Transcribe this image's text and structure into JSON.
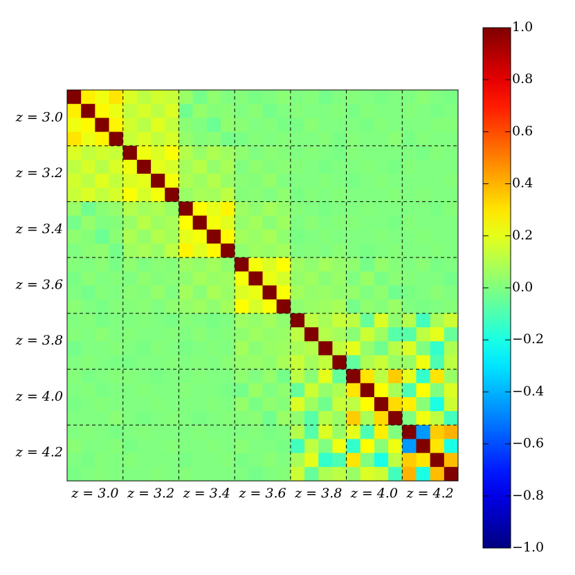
{
  "chart_data": {
    "type": "heatmap",
    "categories": [
      "z = 3.0",
      "z = 3.2",
      "z = 3.4",
      "z = 3.6",
      "z = 3.8",
      "z = 4.0",
      "z = 4.2"
    ],
    "colormap": "jet",
    "zlim": [
      -1.0,
      1.0
    ],
    "zticks": [
      {
        "value": 1.0,
        "label": "1.0"
      },
      {
        "value": 0.8,
        "label": "0.8"
      },
      {
        "value": 0.6,
        "label": "0.6"
      },
      {
        "value": 0.4,
        "label": "0.4"
      },
      {
        "value": 0.2,
        "label": "0.2"
      },
      {
        "value": 0.0,
        "label": "0.0"
      },
      {
        "value": -0.2,
        "label": "−0.2"
      },
      {
        "value": -0.4,
        "label": "−0.4"
      },
      {
        "value": -0.6,
        "label": "−0.6"
      },
      {
        "value": -0.8,
        "label": "−0.8"
      },
      {
        "value": -1.0,
        "label": "−1.0"
      }
    ],
    "z": [
      [
        1.0,
        0.28,
        0.22,
        0.3,
        0.18,
        0.12,
        0.16,
        0.14,
        0.05,
        -0.02,
        0.03,
        0.0,
        0.01,
        -0.01,
        0.0,
        0.02,
        0.0,
        0.01,
        -0.02,
        0.0,
        0.01,
        0.0,
        -0.01,
        0.0,
        0.0,
        0.02,
        0.0,
        -0.01
      ],
      [
        0.28,
        1.0,
        0.26,
        0.21,
        0.13,
        0.17,
        0.12,
        0.18,
        -0.03,
        0.04,
        0.01,
        0.02,
        0.0,
        0.02,
        -0.02,
        0.0,
        0.01,
        0.0,
        0.0,
        0.01,
        -0.01,
        0.01,
        0.0,
        0.0,
        0.01,
        0.0,
        -0.01,
        0.0
      ],
      [
        0.22,
        0.26,
        1.0,
        0.27,
        0.16,
        0.11,
        0.19,
        0.13,
        0.02,
        0.0,
        -0.04,
        0.03,
        0.02,
        0.0,
        0.01,
        -0.01,
        -0.01,
        0.02,
        0.0,
        0.0,
        0.0,
        -0.01,
        0.01,
        0.0,
        0.0,
        0.0,
        0.01,
        0.01
      ],
      [
        0.3,
        0.21,
        0.27,
        1.0,
        0.14,
        0.18,
        0.13,
        0.17,
        0.04,
        0.01,
        0.02,
        -0.02,
        -0.01,
        0.01,
        0.0,
        0.01,
        0.0,
        0.0,
        0.01,
        -0.01,
        0.01,
        0.0,
        0.0,
        0.02,
        -0.01,
        0.01,
        0.0,
        0.0
      ],
      [
        0.18,
        0.13,
        0.16,
        0.14,
        1.0,
        0.22,
        0.18,
        0.24,
        0.1,
        0.05,
        0.09,
        0.06,
        0.03,
        0.0,
        0.02,
        0.01,
        0.0,
        0.01,
        0.0,
        -0.01,
        0.01,
        0.0,
        0.0,
        0.0,
        0.0,
        -0.01,
        0.01,
        0.0
      ],
      [
        0.12,
        0.17,
        0.11,
        0.18,
        0.22,
        1.0,
        0.2,
        0.17,
        0.07,
        0.11,
        0.04,
        0.08,
        0.0,
        0.03,
        0.01,
        0.02,
        0.01,
        0.0,
        -0.01,
        0.0,
        0.0,
        0.01,
        0.0,
        -0.01,
        0.01,
        0.0,
        0.0,
        0.0
      ],
      [
        0.16,
        0.12,
        0.19,
        0.13,
        0.18,
        0.2,
        1.0,
        0.23,
        0.09,
        0.06,
        0.1,
        0.05,
        0.02,
        0.01,
        0.04,
        0.0,
        0.0,
        0.0,
        0.01,
        0.0,
        -0.01,
        0.0,
        0.01,
        0.0,
        0.0,
        0.0,
        0.0,
        0.01
      ],
      [
        0.14,
        0.18,
        0.13,
        0.17,
        0.24,
        0.17,
        0.23,
        1.0,
        0.05,
        0.08,
        0.07,
        0.12,
        0.01,
        0.02,
        0.0,
        0.03,
        -0.01,
        0.01,
        0.0,
        0.01,
        0.0,
        0.0,
        0.0,
        0.01,
        0.0,
        0.01,
        0.0,
        0.0
      ],
      [
        0.05,
        -0.03,
        0.02,
        0.04,
        0.1,
        0.07,
        0.09,
        0.05,
        1.0,
        0.25,
        0.2,
        0.27,
        0.06,
        0.03,
        0.07,
        0.04,
        0.01,
        0.0,
        -0.01,
        0.0,
        0.0,
        0.01,
        0.0,
        0.0,
        0.0,
        0.0,
        -0.01,
        0.01
      ],
      [
        -0.02,
        0.04,
        0.0,
        0.01,
        0.05,
        0.11,
        0.06,
        0.08,
        0.25,
        1.0,
        0.23,
        0.19,
        0.04,
        0.07,
        0.02,
        0.06,
        0.0,
        0.02,
        0.0,
        0.01,
        0.01,
        0.0,
        0.0,
        -0.01,
        0.01,
        0.0,
        0.0,
        0.0
      ],
      [
        0.03,
        0.01,
        -0.04,
        0.02,
        0.09,
        0.04,
        0.1,
        0.07,
        0.2,
        0.23,
        1.0,
        0.26,
        0.07,
        0.05,
        0.08,
        0.03,
        -0.01,
        0.0,
        0.01,
        0.0,
        0.0,
        0.0,
        0.01,
        0.0,
        0.0,
        0.01,
        0.0,
        0.0
      ],
      [
        0.0,
        0.02,
        0.03,
        -0.02,
        0.06,
        0.08,
        0.05,
        0.12,
        0.27,
        0.19,
        0.26,
        1.0,
        0.03,
        0.06,
        0.05,
        0.07,
        0.0,
        0.01,
        0.0,
        0.02,
        0.0,
        -0.01,
        0.0,
        0.01,
        0.0,
        0.0,
        0.01,
        0.0
      ],
      [
        0.01,
        0.0,
        0.02,
        -0.01,
        0.03,
        0.0,
        0.02,
        0.01,
        0.06,
        0.04,
        0.07,
        0.03,
        1.0,
        0.23,
        0.18,
        0.25,
        0.06,
        0.03,
        0.07,
        0.04,
        0.03,
        -0.02,
        0.04,
        0.01,
        0.0,
        0.02,
        -0.01,
        0.0
      ],
      [
        -0.01,
        0.02,
        0.0,
        0.01,
        0.0,
        0.03,
        0.01,
        0.02,
        0.03,
        0.07,
        0.05,
        0.06,
        0.23,
        1.0,
        0.21,
        0.17,
        0.04,
        0.06,
        0.02,
        0.05,
        0.0,
        0.05,
        -0.01,
        0.02,
        0.01,
        0.0,
        0.0,
        -0.02
      ],
      [
        0.0,
        -0.02,
        0.01,
        0.0,
        0.02,
        0.01,
        0.04,
        0.0,
        0.07,
        0.02,
        0.08,
        0.05,
        0.18,
        0.21,
        1.0,
        0.24,
        0.07,
        0.04,
        0.05,
        0.03,
        0.04,
        0.0,
        0.03,
        -0.03,
        -0.01,
        0.0,
        0.02,
        0.0
      ],
      [
        0.02,
        0.0,
        -0.01,
        0.01,
        0.01,
        0.02,
        0.0,
        0.03,
        0.04,
        0.06,
        0.03,
        0.07,
        0.25,
        0.17,
        0.24,
        1.0,
        0.03,
        0.05,
        0.06,
        0.08,
        -0.02,
        0.03,
        0.01,
        0.05,
        0.0,
        -0.01,
        0.0,
        0.01
      ],
      [
        0.0,
        0.01,
        -0.01,
        0.0,
        0.0,
        0.01,
        0.0,
        -0.01,
        0.01,
        0.0,
        -0.01,
        0.0,
        0.06,
        0.04,
        0.07,
        0.03,
        1.0,
        0.12,
        0.08,
        0.14,
        0.12,
        -0.05,
        0.18,
        0.03,
        0.1,
        -0.12,
        0.08,
        0.15
      ],
      [
        0.01,
        0.0,
        0.02,
        0.0,
        0.01,
        0.0,
        0.0,
        0.01,
        0.0,
        0.02,
        0.0,
        0.01,
        0.03,
        0.06,
        0.04,
        0.05,
        0.12,
        1.0,
        0.1,
        0.07,
        0.02,
        0.15,
        0.06,
        -0.08,
        -0.08,
        0.12,
        0.2,
        -0.05
      ],
      [
        -0.02,
        0.0,
        0.0,
        0.01,
        0.0,
        -0.01,
        0.01,
        0.0,
        -0.01,
        0.0,
        0.01,
        0.0,
        0.07,
        0.02,
        0.05,
        0.06,
        0.08,
        0.1,
        1.0,
        0.13,
        0.2,
        0.04,
        -0.03,
        0.11,
        0.18,
        0.0,
        -0.15,
        0.09
      ],
      [
        0.0,
        0.01,
        0.0,
        -0.01,
        -0.01,
        0.0,
        0.0,
        0.01,
        0.0,
        0.01,
        0.0,
        0.02,
        0.04,
        0.05,
        0.03,
        0.08,
        0.14,
        0.07,
        0.13,
        1.0,
        -0.06,
        0.09,
        0.14,
        0.05,
        0.05,
        0.22,
        -0.1,
        0.12
      ],
      [
        0.01,
        -0.01,
        0.0,
        0.01,
        0.01,
        0.0,
        -0.01,
        0.0,
        0.0,
        0.01,
        0.0,
        0.0,
        0.03,
        0.0,
        0.04,
        -0.02,
        0.12,
        0.02,
        0.2,
        -0.06,
        1.0,
        0.3,
        0.12,
        0.35,
        0.2,
        -0.15,
        0.3,
        0.05
      ],
      [
        0.0,
        0.01,
        -0.01,
        0.0,
        0.0,
        0.01,
        0.0,
        0.0,
        0.01,
        0.0,
        0.0,
        -0.01,
        -0.02,
        0.05,
        0.0,
        0.03,
        -0.05,
        0.15,
        0.04,
        0.09,
        0.3,
        1.0,
        0.25,
        0.08,
        -0.1,
        0.25,
        0.0,
        0.18
      ],
      [
        -0.01,
        0.0,
        0.01,
        0.0,
        0.0,
        0.0,
        0.01,
        0.0,
        0.0,
        0.0,
        0.01,
        0.0,
        0.04,
        -0.01,
        0.03,
        0.01,
        0.18,
        0.06,
        -0.03,
        0.14,
        0.12,
        0.25,
        1.0,
        0.32,
        0.28,
        0.02,
        -0.2,
        0.15
      ],
      [
        0.0,
        0.0,
        0.0,
        0.02,
        0.0,
        -0.01,
        0.0,
        0.01,
        0.0,
        -0.01,
        0.0,
        0.01,
        0.01,
        0.02,
        -0.03,
        0.05,
        0.03,
        -0.08,
        0.11,
        0.05,
        0.35,
        0.08,
        0.32,
        1.0,
        0.0,
        0.22,
        0.12,
        -0.12
      ],
      [
        0.0,
        0.01,
        0.0,
        -0.01,
        0.0,
        0.01,
        0.0,
        0.0,
        0.0,
        0.01,
        0.0,
        0.0,
        0.0,
        0.01,
        -0.01,
        0.0,
        0.1,
        -0.08,
        0.18,
        0.05,
        0.2,
        -0.1,
        0.28,
        0.0,
        1.0,
        -0.45,
        0.35,
        0.4
      ],
      [
        0.02,
        0.0,
        0.0,
        0.01,
        -0.01,
        0.0,
        0.0,
        0.01,
        0.0,
        0.0,
        0.01,
        0.0,
        0.02,
        0.0,
        0.0,
        -0.01,
        -0.12,
        0.12,
        0.0,
        0.22,
        -0.15,
        0.25,
        0.02,
        0.22,
        -0.45,
        1.0,
        0.3,
        -0.2
      ],
      [
        0.0,
        -0.01,
        0.01,
        0.0,
        0.01,
        0.0,
        0.0,
        0.0,
        -0.01,
        0.0,
        0.0,
        0.01,
        -0.01,
        0.0,
        0.02,
        0.0,
        0.08,
        0.2,
        -0.15,
        -0.1,
        0.3,
        0.0,
        -0.2,
        0.12,
        0.35,
        0.3,
        1.0,
        0.38
      ],
      [
        -0.01,
        0.0,
        0.01,
        0.0,
        0.0,
        0.0,
        0.01,
        0.0,
        0.01,
        0.0,
        0.0,
        0.0,
        0.0,
        -0.02,
        0.0,
        0.01,
        0.15,
        -0.05,
        0.09,
        0.12,
        0.05,
        0.18,
        0.15,
        -0.12,
        0.4,
        -0.2,
        0.38,
        1.0
      ]
    ]
  }
}
